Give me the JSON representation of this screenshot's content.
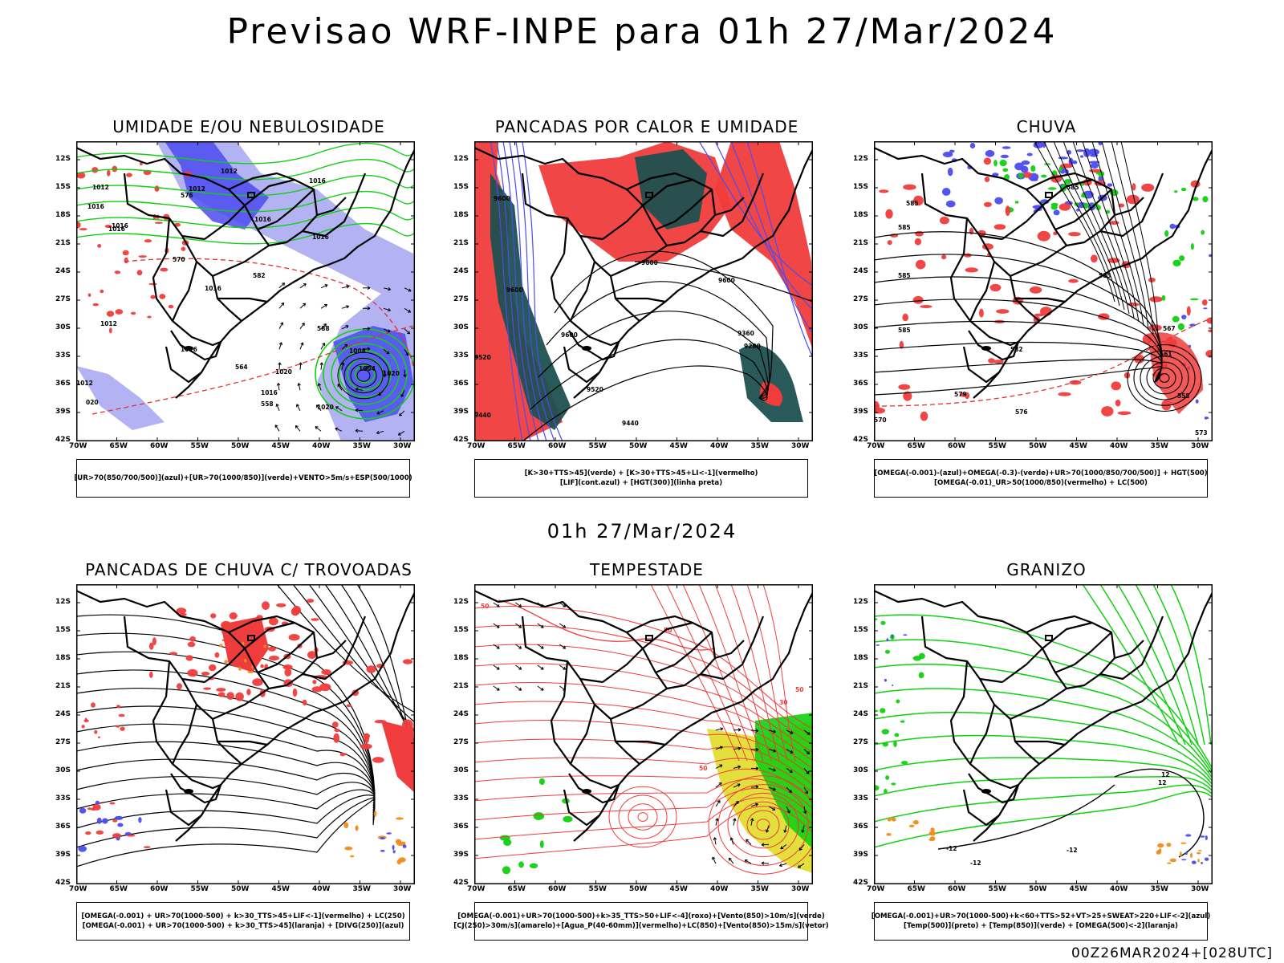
{
  "header": {
    "title": "Previsao WRF-INPE  para 01h 27/Mar/2024"
  },
  "middle": {
    "title": "01h 27/Mar/2024"
  },
  "footer": {
    "run": "00Z26MAR2024+[028UTC]"
  },
  "axes": {
    "lat_ticks": [
      "12S",
      "15S",
      "18S",
      "21S",
      "24S",
      "27S",
      "30S",
      "33S",
      "36S",
      "39S",
      "42S"
    ],
    "lon_ticks": [
      "70W",
      "65W",
      "60W",
      "55W",
      "50W",
      "45W",
      "40W",
      "35W",
      "30W"
    ]
  },
  "panels": [
    {
      "title": "UMIDADE E/OU NEBULOSIDADE",
      "legend": [
        "[UR>70(850/700/500)](azul)+[UR>70(1000/850)](verde)+VENTO>5m/s+ESP(500/1000)"
      ],
      "labels": [
        "1012",
        "1012",
        "1012",
        "1016",
        "1016",
        "1016",
        "1016",
        "1016",
        "1016",
        "1020",
        "1020",
        "1008",
        "1004",
        "1012",
        "1016",
        "1020",
        "1016",
        "1012",
        "020",
        "1016",
        "576",
        "564",
        "558",
        "570",
        "582",
        "588"
      ]
    },
    {
      "title": "PANCADAS POR CALOR E UMIDADE",
      "legend": [
        "[K>30+TTS>45](verde) + [K>30+TTS>45+LI<-1](vermelho)",
        "[LIF](cont.azul) + [HGT(300)](linha preta)"
      ],
      "labels": [
        "9600",
        "9600",
        "9600",
        "9600",
        "9600",
        "9520",
        "9520",
        "9440",
        "9440",
        "9360",
        "9280"
      ]
    },
    {
      "title": "CHUVA",
      "legend": [
        "[OMEGA(-0.001)-(azul)+OMEGA(-0.3)-(verde)+UR>70(1000/850/700/500)] + HGT(500)",
        "[OMEGA(-0.01)_UR>50(1000/850)(vermelho) + LC(500)"
      ],
      "labels": [
        "585",
        "585",
        "585",
        "585",
        "585",
        "582",
        "579",
        "576",
        "573",
        "570",
        "567",
        "561",
        "558",
        "585"
      ]
    },
    {
      "title": "PANCADAS DE CHUVA C/ TROVOADAS",
      "legend": [
        "[OMEGA(-0.001) + UR>70(1000-500) + k>30_TTS>45+LIF<-1](vermelho) + LC(250)",
        "[OMEGA(-0.001) + UR>70(1000-500) + k>30_TTS>45](laranja) + [DIVG(250)](azul)"
      ],
      "labels": []
    },
    {
      "title": "TEMPESTADE",
      "legend": [
        "[OMEGA(-0.001)+UR>70(1000-500)+k>35_TTS>50+LIF<-4](roxo)+[Vento(850)>10m/s](verde)",
        "[CJ(250)>30m/s](amarelo)+[Agua_P(40-60mm)](vermelho)+LC(850)+[Vento(850)>15m/s](vetor)"
      ],
      "labels": [
        "50",
        "50",
        "50",
        "30",
        "50"
      ]
    },
    {
      "title": "GRANIZO",
      "legend": [
        "[OMEGA(-0.001)+UR>70(1000-500)+k<60+TTS>52+VT>25+SWEAT>220+LIF<-2](azul)",
        "[Temp(500)](preto) + [Temp(850)](verde) + [OMEGA(500)<-2](laranja)"
      ],
      "labels": [
        "-12",
        "-12",
        "-12",
        "12",
        "12"
      ]
    }
  ],
  "colors": {
    "red": "#f03c3c",
    "blue": "#4b4bf0",
    "lightblue": "#a0a0f0",
    "green": "#10d010",
    "darkgreen": "#1e5050",
    "yellow": "#e0dc28",
    "orange": "#f08c1e"
  }
}
